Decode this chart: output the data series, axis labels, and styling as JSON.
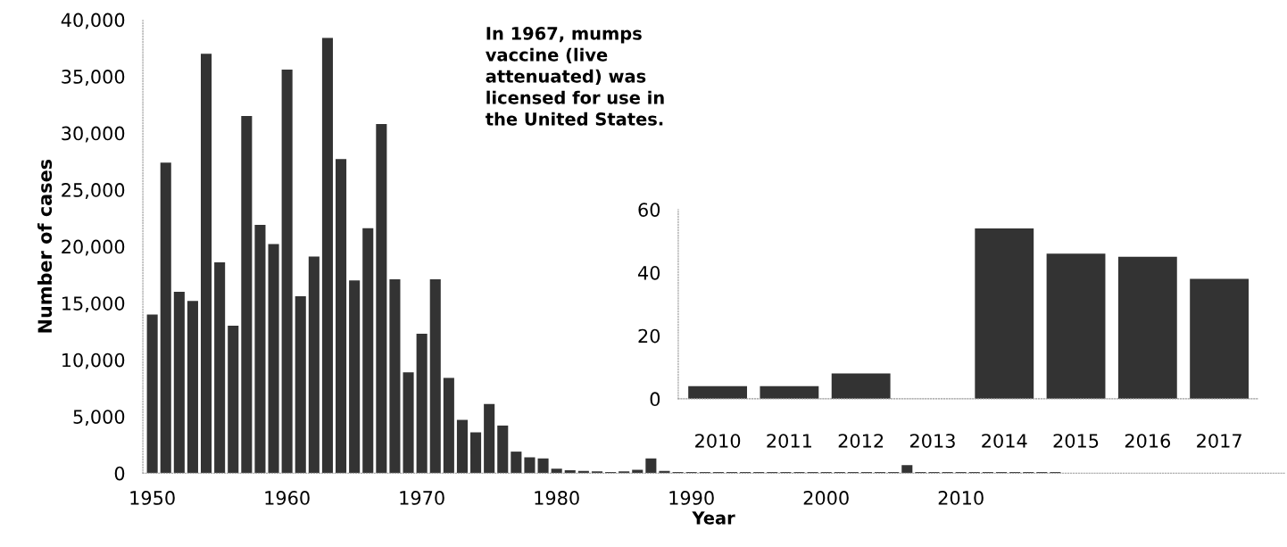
{
  "chart_data": [
    {
      "type": "bar",
      "xlabel": "Year",
      "ylabel": "Number of cases",
      "x": [
        1950,
        1951,
        1952,
        1953,
        1954,
        1955,
        1956,
        1957,
        1958,
        1959,
        1960,
        1961,
        1962,
        1963,
        1964,
        1965,
        1966,
        1967,
        1968,
        1969,
        1970,
        1971,
        1972,
        1973,
        1974,
        1975,
        1976,
        1977,
        1978,
        1979,
        1980,
        1981,
        1982,
        1983,
        1984,
        1985,
        1986,
        1987,
        1988,
        1989,
        1990,
        1991,
        1992,
        1993,
        1994,
        1995,
        1996,
        1997,
        1998,
        1999,
        2000,
        2001,
        2002,
        2003,
        2004,
        2005,
        2006,
        2007,
        2008,
        2009,
        2010,
        2011,
        2012,
        2013,
        2014,
        2015,
        2016,
        2017
      ],
      "values": [
        14000,
        27400,
        16000,
        15200,
        37000,
        18600,
        13000,
        31500,
        21900,
        20200,
        35600,
        15600,
        19100,
        38400,
        27700,
        17000,
        21600,
        30800,
        17100,
        8900,
        12300,
        17100,
        8400,
        4700,
        3600,
        6100,
        4200,
        1900,
        1400,
        1300,
        400,
        250,
        200,
        150,
        100,
        150,
        300,
        1300,
        200,
        100,
        100,
        100,
        100,
        100,
        100,
        100,
        100,
        100,
        100,
        100,
        100,
        100,
        100,
        100,
        100,
        100,
        700,
        100,
        100,
        100,
        100,
        100,
        100,
        100,
        100,
        100,
        100,
        100
      ],
      "color": "#333333",
      "xlim": [
        1949.3,
        2034
      ],
      "xticks": [
        1950,
        1960,
        1970,
        1980,
        1990,
        2000,
        2010
      ],
      "ylim": [
        0,
        40000
      ],
      "yticks": [
        {
          "value": 0,
          "label": "0"
        },
        {
          "value": 5000,
          "label": "5,000"
        },
        {
          "value": 10000,
          "label": "10,000"
        },
        {
          "value": 15000,
          "label": "15,000"
        },
        {
          "value": 20000,
          "label": "20,000"
        },
        {
          "value": 25000,
          "label": "25,000"
        },
        {
          "value": 30000,
          "label": "30,000"
        },
        {
          "value": 35000,
          "label": "35,000"
        },
        {
          "value": 40000,
          "label": "40,000"
        }
      ],
      "grid": false,
      "legend": false,
      "annotations": [
        "In 1967, mumps\nvaccine (live\nattenuated) was\nlicensed for use in\nthe United States."
      ]
    },
    {
      "type": "bar",
      "categories": [
        "2010",
        "2011",
        "2012",
        "2013",
        "2014",
        "2015",
        "2016",
        "2017"
      ],
      "values": [
        4,
        4,
        8,
        0,
        54,
        46,
        45,
        38
      ],
      "color": "#333333",
      "ylim": [
        0,
        60
      ],
      "yticks": [
        0,
        20,
        40,
        60
      ],
      "grid": false,
      "legend": false
    }
  ]
}
